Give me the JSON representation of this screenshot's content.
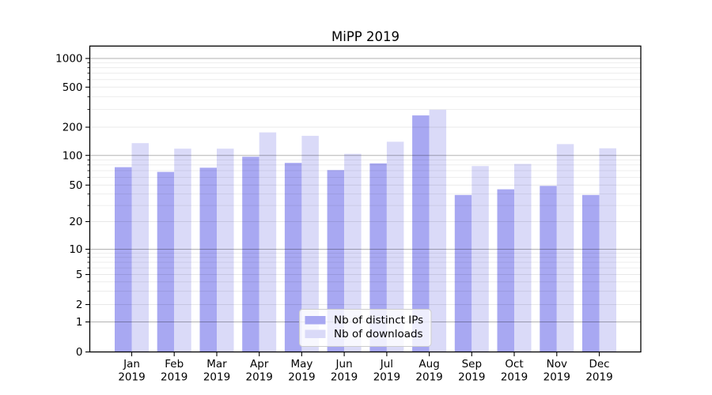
{
  "chart_data": {
    "type": "bar",
    "title": "MiPP 2019",
    "year": "2019",
    "months": [
      "Jan",
      "Feb",
      "Mar",
      "Apr",
      "May",
      "Jun",
      "Jul",
      "Aug",
      "Sep",
      "Oct",
      "Nov",
      "Dec"
    ],
    "categories": [
      "Jan 2019",
      "Feb 2019",
      "Mar 2019",
      "Apr 2019",
      "May 2019",
      "Jun 2019",
      "Jul 2019",
      "Aug 2019",
      "Sep 2019",
      "Oct 2019",
      "Nov 2019",
      "Dec 2019"
    ],
    "series": [
      {
        "name": "Nb of distinct IPs",
        "key": "distinct-ips",
        "color": "#a8a8f2",
        "values": [
          76,
          68,
          75,
          97,
          84,
          71,
          83,
          262,
          39,
          45,
          49,
          39
        ]
      },
      {
        "name": "Nb of downloads",
        "key": "downloads",
        "color": "#dadaf8",
        "values": [
          135,
          118,
          118,
          176,
          162,
          104,
          140,
          298,
          78,
          82,
          132,
          119
        ]
      }
    ],
    "yscale": "symlog",
    "ytick_labels": [
      "0",
      "1",
      "2",
      "5",
      "10",
      "20",
      "50",
      "100",
      "200",
      "500",
      "1000"
    ],
    "ylim": [
      0,
      1350
    ],
    "grid": true,
    "legend_position": "lower center",
    "colors": {
      "major_grid": "rgba(0,0,0,0.30)",
      "minor_grid": "rgba(0,0,0,0.09)",
      "axis": "#000000",
      "legend_border": "#cccccc",
      "legend_background": "rgba(255,255,255,0.8)"
    }
  }
}
